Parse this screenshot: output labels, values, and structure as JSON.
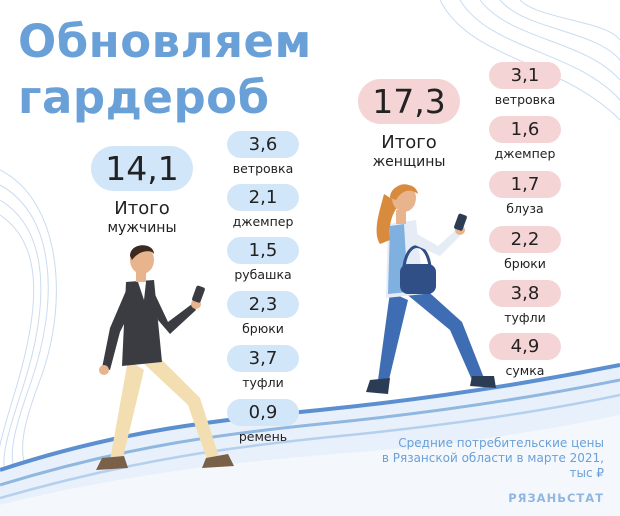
{
  "title": {
    "line1": "Обновляем",
    "line2": "гардероб"
  },
  "men": {
    "total": "14,1",
    "total_label": "Итого",
    "total_sub": "мужчины",
    "items": [
      {
        "value": "3,6",
        "label": "ветровка"
      },
      {
        "value": "2,1",
        "label": "джемпер"
      },
      {
        "value": "1,5",
        "label": "рубашка"
      },
      {
        "value": "2,3",
        "label": "брюки"
      },
      {
        "value": "3,7",
        "label": "туфли"
      },
      {
        "value": "0,9",
        "label": "ремень"
      }
    ]
  },
  "women": {
    "total": "17,3",
    "total_label": "Итого",
    "total_sub": "женщины",
    "items": [
      {
        "value": "3,1",
        "label": "ветровка"
      },
      {
        "value": "1,6",
        "label": "джемпер"
      },
      {
        "value": "1,7",
        "label": "блуза"
      },
      {
        "value": "2,2",
        "label": "брюки"
      },
      {
        "value": "3,8",
        "label": "туфли"
      },
      {
        "value": "4,9",
        "label": "сумка"
      }
    ]
  },
  "footnote": {
    "line1": "Средние потребительские цены",
    "line2": "в Рязанской области в марте 2021,",
    "line3": "тыс ₽"
  },
  "brand": "РЯЗАНЬСТАТ",
  "colors": {
    "title": "#6aa0d8",
    "men_pill": "#d2e6fa",
    "women_pill": "#f5d4d6",
    "wave": "#5b8fd0"
  }
}
